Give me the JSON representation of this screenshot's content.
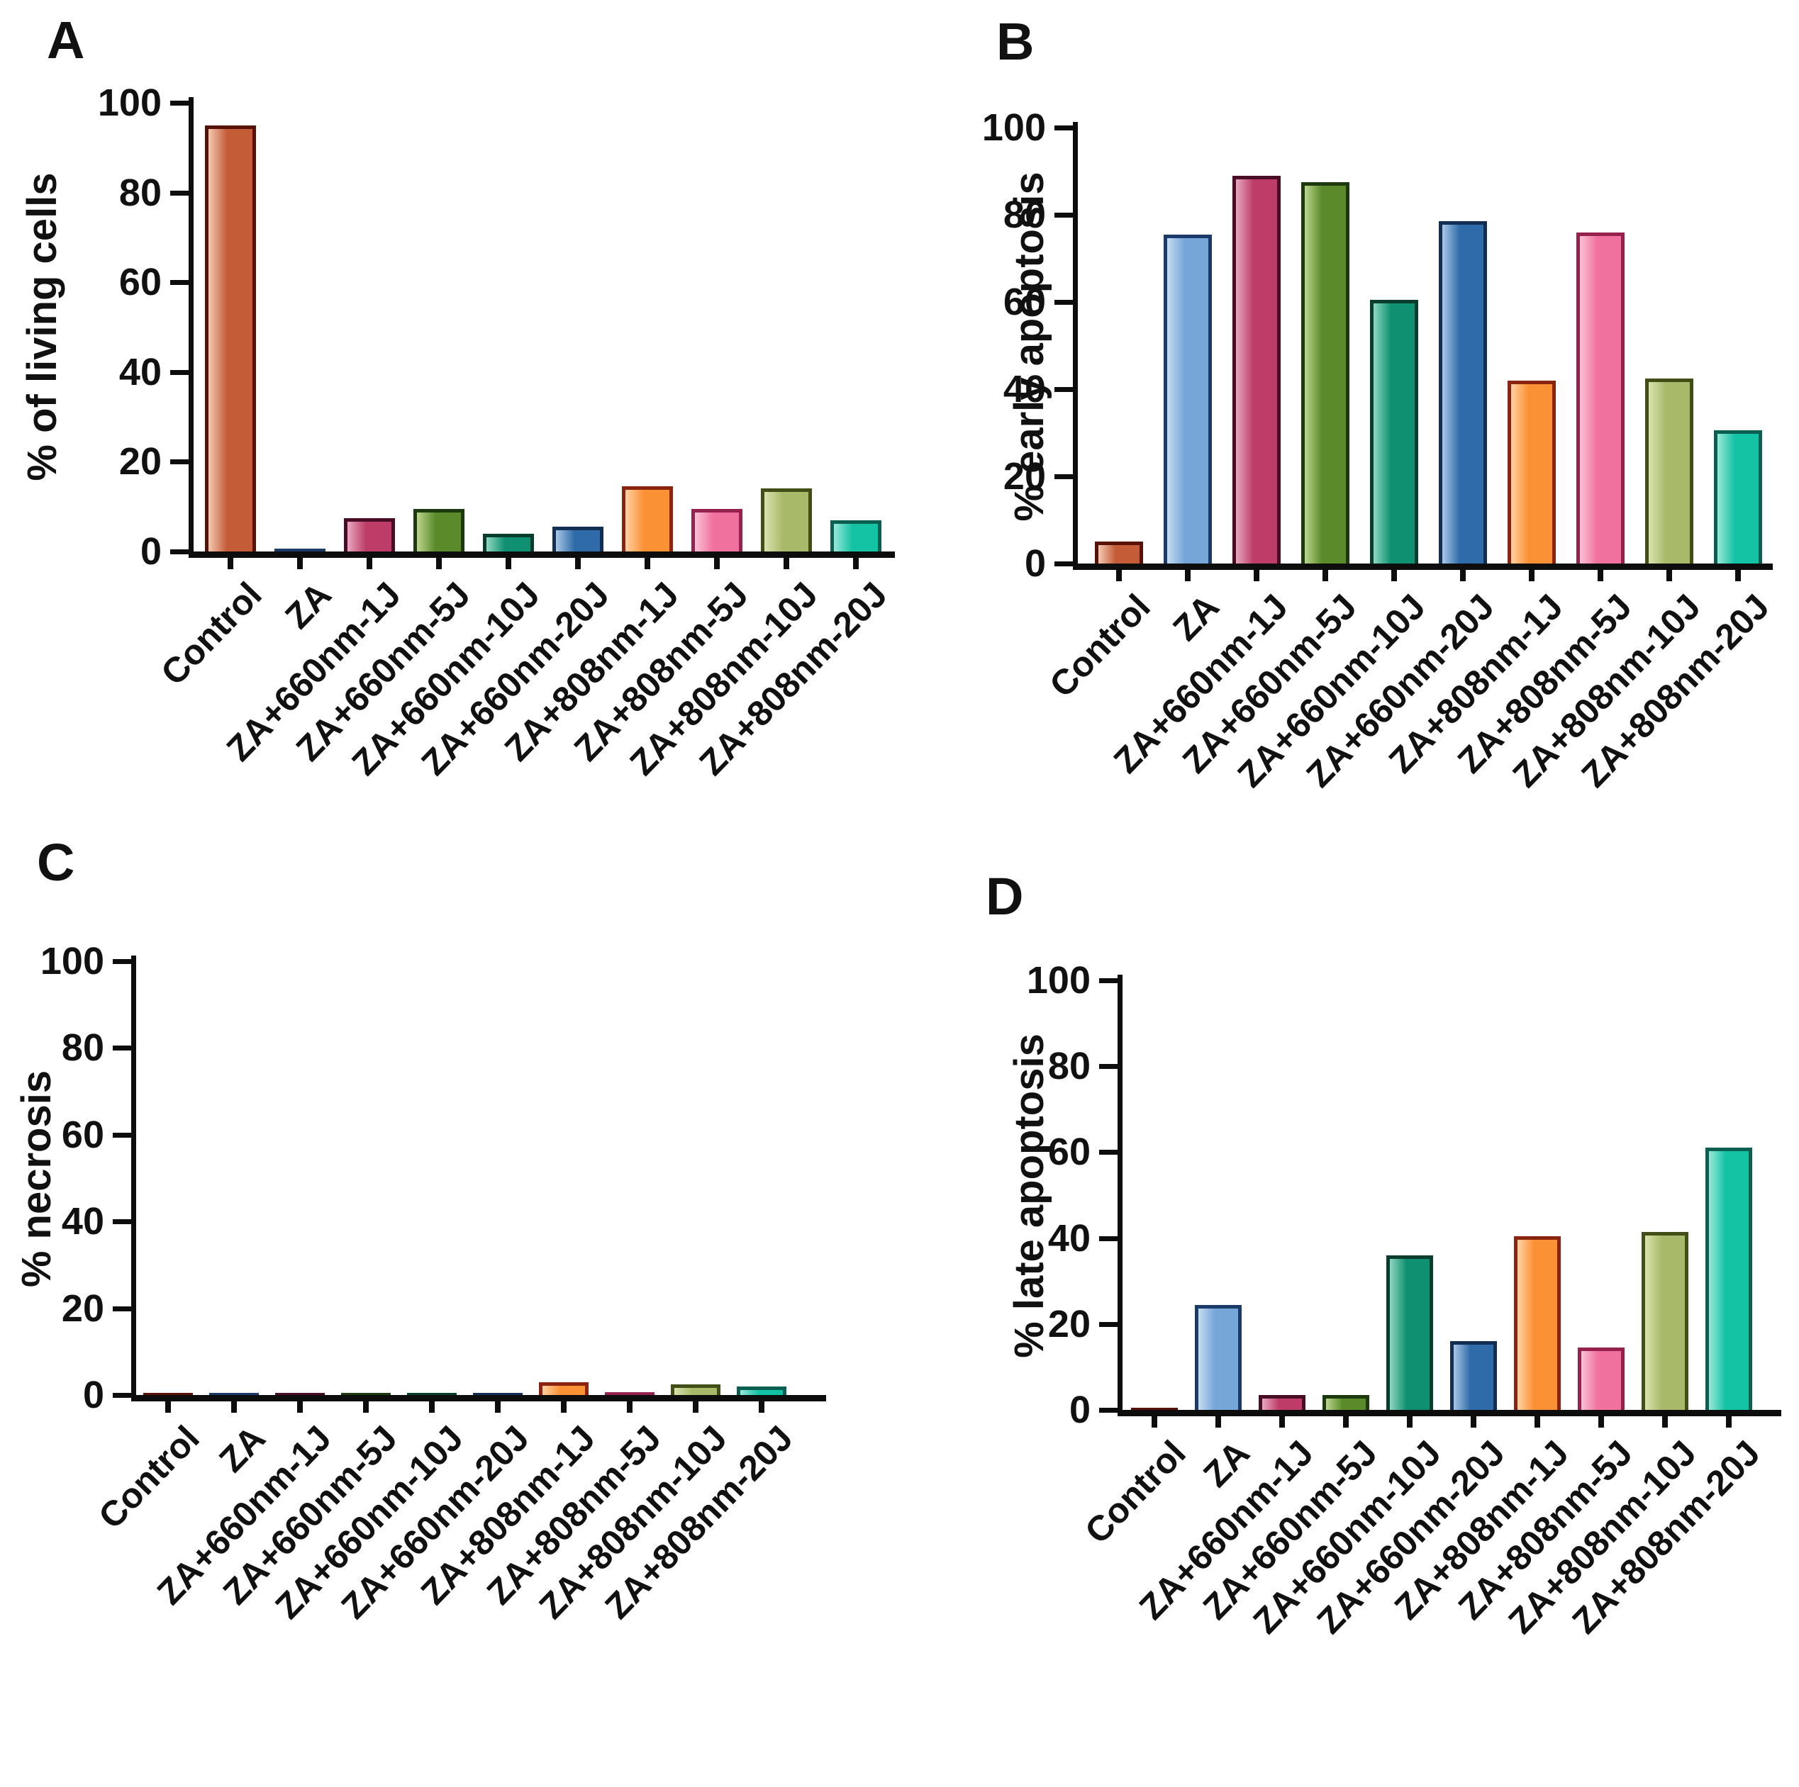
{
  "figure": {
    "background": "#ffffff",
    "axis_color": "#0d0d0d",
    "text_color": "#111111"
  },
  "categories": [
    "Control",
    "ZA",
    "ZA+660nm-1J",
    "ZA+660nm-5J",
    "ZA+660nm-10J",
    "ZA+660nm-20J",
    "ZA+808nm-1J",
    "ZA+808nm-5J",
    "ZA+808nm-10J",
    "ZA+808nm-20J"
  ],
  "bar_colors": [
    {
      "name": "control",
      "fill": "#C45C38",
      "border": "#571208",
      "highlight": "#F4C9B4"
    },
    {
      "name": "za",
      "fill": "#76A5D8",
      "border": "#1A3A68",
      "highlight": "#C6DDF2"
    },
    {
      "name": "za-660nm-1j",
      "fill": "#BE3D68",
      "border": "#4A0D26",
      "highlight": "#E8A8C0"
    },
    {
      "name": "za-660nm-5j",
      "fill": "#5A8A2A",
      "border": "#1C3A0E",
      "highlight": "#BCD68E"
    },
    {
      "name": "za-660nm-10j",
      "fill": "#0F9070",
      "border": "#083D2E",
      "highlight": "#8FD8C2"
    },
    {
      "name": "za-660nm-20j",
      "fill": "#2F6BA8",
      "border": "#122E52",
      "highlight": "#A9C8E6"
    },
    {
      "name": "za-808nm-1j",
      "fill": "#FB9135",
      "border": "#8A2310",
      "highlight": "#FFD2A4"
    },
    {
      "name": "za-808nm-5j",
      "fill": "#F0709E",
      "border": "#97214E",
      "highlight": "#FAC2D6"
    },
    {
      "name": "za-808nm-10j",
      "fill": "#A8B96A",
      "border": "#414E16",
      "highlight": "#D9E3AE"
    },
    {
      "name": "za-808nm-20j",
      "fill": "#14C2A4",
      "border": "#0A5F50",
      "highlight": "#9AE8D9"
    }
  ],
  "chart_data": [
    {
      "type": "bar",
      "panel": "A",
      "title": "",
      "xlabel": "",
      "ylabel": "% of living cells",
      "ylim": [
        0,
        100
      ],
      "yticks": [
        0,
        20,
        40,
        60,
        80,
        100
      ],
      "grid": false,
      "legend": "none",
      "categories": [
        "Control",
        "ZA",
        "ZA+660nm-1J",
        "ZA+660nm-5J",
        "ZA+660nm-10J",
        "ZA+660nm-20J",
        "ZA+808nm-1J",
        "ZA+808nm-5J",
        "ZA+808nm-10J",
        "ZA+808nm-20J"
      ],
      "values": [
        95,
        0.7,
        7.5,
        9.5,
        4,
        5.5,
        14.5,
        9.5,
        14,
        7
      ]
    },
    {
      "type": "bar",
      "panel": "B",
      "title": "",
      "xlabel": "",
      "ylabel": "% early apoptosis",
      "ylim": [
        0,
        100
      ],
      "yticks": [
        0,
        20,
        40,
        60,
        80,
        100
      ],
      "grid": false,
      "legend": "none",
      "categories": [
        "Control",
        "ZA",
        "ZA+660nm-1J",
        "ZA+660nm-5J",
        "ZA+660nm-10J",
        "ZA+660nm-20J",
        "ZA+808nm-1J",
        "ZA+808nm-5J",
        "ZA+808nm-10J",
        "ZA+808nm-20J"
      ],
      "values": [
        5,
        75.5,
        89,
        87.5,
        60.5,
        78.5,
        42,
        76,
        42.5,
        30.5
      ]
    },
    {
      "type": "bar",
      "panel": "C",
      "title": "",
      "xlabel": "",
      "ylabel": "% necrosis",
      "ylim": [
        0,
        100
      ],
      "yticks": [
        0,
        20,
        40,
        60,
        80,
        100
      ],
      "grid": false,
      "legend": "none",
      "categories": [
        "Control",
        "ZA",
        "ZA+660nm-1J",
        "ZA+660nm-5J",
        "ZA+660nm-10J",
        "ZA+660nm-20J",
        "ZA+808nm-1J",
        "ZA+808nm-5J",
        "ZA+808nm-10J",
        "ZA+808nm-20J"
      ],
      "values": [
        0.3,
        0.3,
        0.3,
        0.4,
        0.4,
        0.5,
        3,
        0.6,
        2.5,
        2
      ]
    },
    {
      "type": "bar",
      "panel": "D",
      "title": "",
      "xlabel": "",
      "ylabel": "% late apoptosis",
      "ylim": [
        0,
        100
      ],
      "yticks": [
        0,
        20,
        40,
        60,
        80,
        100
      ],
      "grid": false,
      "legend": "none",
      "categories": [
        "Control",
        "ZA",
        "ZA+660nm-1J",
        "ZA+660nm-5J",
        "ZA+660nm-10J",
        "ZA+660nm-20J",
        "ZA+808nm-1J",
        "ZA+808nm-5J",
        "ZA+808nm-10J",
        "ZA+808nm-20J"
      ],
      "values": [
        0.5,
        24.5,
        3.5,
        3.5,
        36,
        16,
        40.5,
        14.5,
        41.5,
        61
      ]
    }
  ]
}
